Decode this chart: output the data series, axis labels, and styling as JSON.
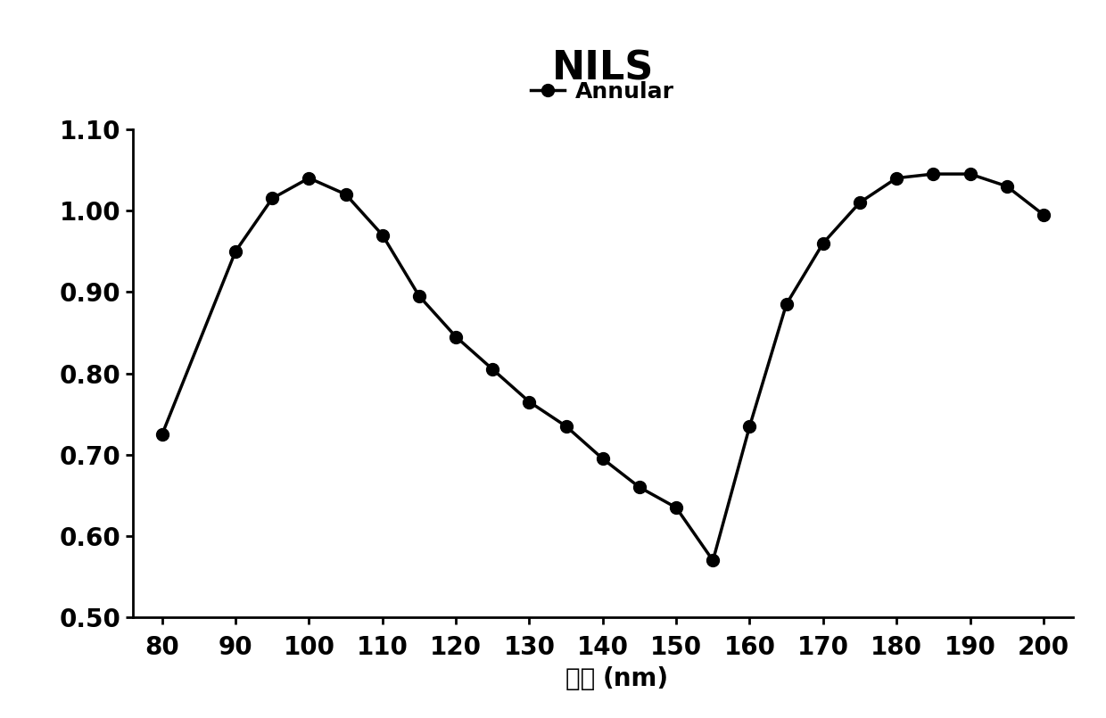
{
  "x": [
    80,
    90,
    95,
    100,
    105,
    110,
    115,
    120,
    125,
    130,
    135,
    140,
    145,
    150,
    155,
    160,
    165,
    170,
    175,
    180,
    185,
    190,
    195,
    200
  ],
  "y": [
    0.725,
    0.95,
    1.015,
    1.04,
    1.02,
    0.97,
    0.895,
    0.845,
    0.805,
    0.765,
    0.735,
    0.695,
    0.66,
    0.635,
    0.57,
    0.735,
    0.885,
    0.96,
    1.01,
    1.04,
    1.045,
    1.045,
    1.03,
    0.995
  ],
  "title": "NILS",
  "legend_label": "Annular",
  "xlabel_chinese": "周期",
  "xlabel_latin": "(nm)",
  "ylim": [
    0.5,
    1.1
  ],
  "yticks": [
    0.5,
    0.6,
    0.7,
    0.8,
    0.9,
    1.0,
    1.1
  ],
  "xlim": [
    76,
    204
  ],
  "xticks": [
    80,
    90,
    100,
    110,
    120,
    130,
    140,
    150,
    160,
    170,
    180,
    190,
    200
  ],
  "line_color": "#000000",
  "marker": "o",
  "marker_size": 10,
  "line_width": 2.5,
  "title_fontsize": 32,
  "tick_fontsize": 20,
  "legend_fontsize": 18,
  "xlabel_fontsize": 20,
  "background_color": "#ffffff"
}
